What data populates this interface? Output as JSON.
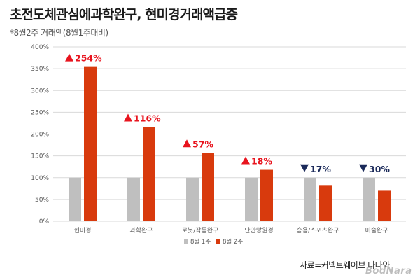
{
  "header": {
    "title": "초전도체관심에과학완구, 현미경거래액급증",
    "subtitle": "*8월2주 거래액(8월1주대비)"
  },
  "footer": {
    "source": "자료=커넥트웨이브 다나와",
    "brand": "BodNara"
  },
  "colors": {
    "series_prev": "#bfbfbf",
    "series_curr": "#d83a0d",
    "up": "#e8141e",
    "down": "#1b2a5a",
    "grid": "#d9d9d9",
    "axis_text": "#595959"
  },
  "chart_data": {
    "type": "bar",
    "title": "",
    "xlabel": "",
    "ylabel": "",
    "ylim": [
      0,
      400
    ],
    "yticks": [
      "0%",
      "50%",
      "100%",
      "150%",
      "200%",
      "250%",
      "300%",
      "350%",
      "400%"
    ],
    "grid": true,
    "legend_position": "bottom",
    "categories": [
      "현미경",
      "과학완구",
      "로봇/작동완구",
      "단안망원경",
      "승용/스포츠완구",
      "미술완구"
    ],
    "series": [
      {
        "name": "8월 1주",
        "values": [
          100,
          100,
          100,
          100,
          100,
          100
        ]
      },
      {
        "name": "8월 2주",
        "values": [
          354,
          216,
          157,
          118,
          83,
          70
        ]
      }
    ],
    "annotations": [
      {
        "direction": "up",
        "text": "254%"
      },
      {
        "direction": "up",
        "text": "116%"
      },
      {
        "direction": "up",
        "text": "57%"
      },
      {
        "direction": "up",
        "text": "18%"
      },
      {
        "direction": "down",
        "text": "17%"
      },
      {
        "direction": "down",
        "text": "30%"
      }
    ]
  }
}
